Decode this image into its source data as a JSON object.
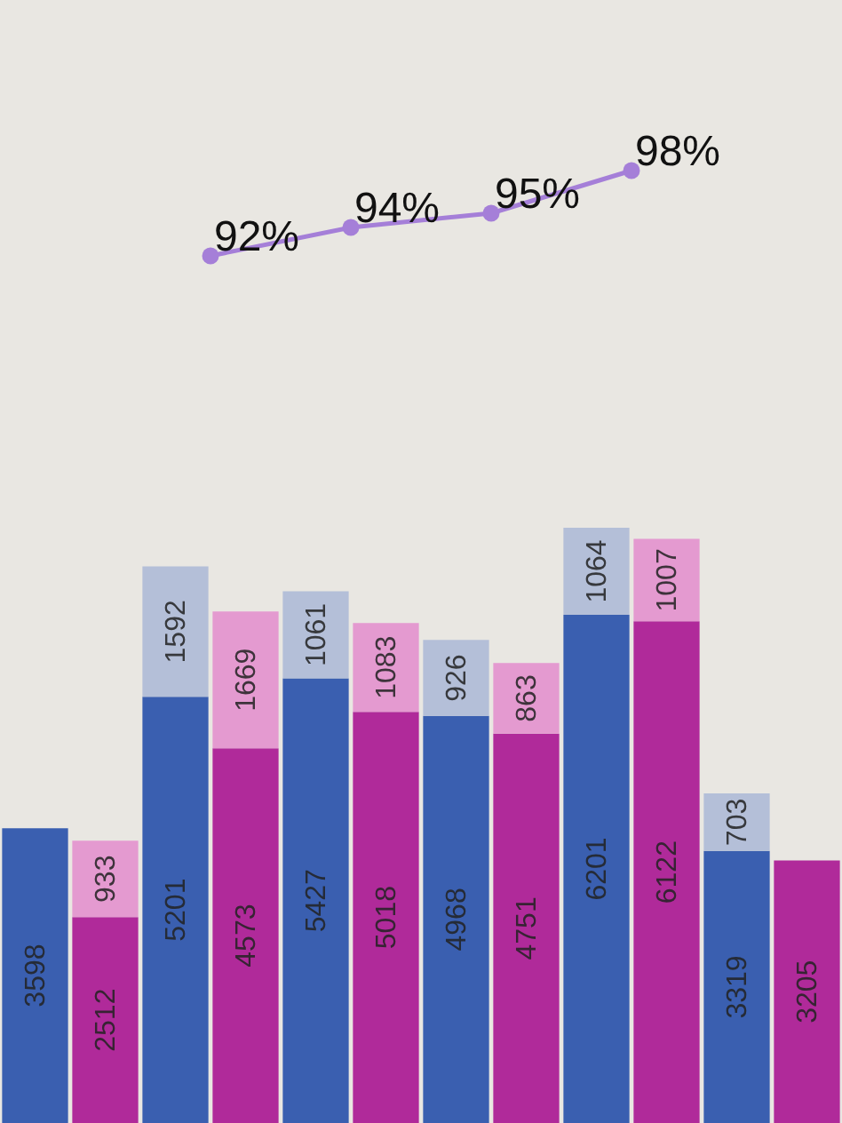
{
  "chart_data": [
    {
      "type": "line",
      "tick_labels": false,
      "marker": "circle",
      "categories": [
        null,
        null,
        null,
        null,
        null,
        null
      ],
      "series": [
        {
          "color": "#a57fd8",
          "values": [
            null,
            92,
            94,
            95,
            98,
            null
          ],
          "value_labels": [
            null,
            "92%",
            "94%",
            "95%",
            "98%",
            null
          ]
        }
      ]
    },
    {
      "type": "bar",
      "stacked": true,
      "data_labels": true,
      "tick_labels": false,
      "ylim": [
        0,
        8500
      ],
      "categories": [
        null,
        null,
        null,
        null,
        null,
        null,
        null,
        null,
        null,
        null,
        null,
        null
      ],
      "series": [
        {
          "colors": [
            "#3a5fb0",
            "#b02a9a",
            "#3a5fb0",
            "#b02a9a",
            "#3a5fb0",
            "#b02a9a",
            "#3a5fb0",
            "#b02a9a",
            "#3a5fb0",
            "#b02a9a",
            "#3a5fb0",
            "#b02a9a"
          ],
          "values": [
            3598,
            2512,
            5201,
            4573,
            5427,
            5018,
            4968,
            4751,
            6201,
            6122,
            3319,
            3205
          ]
        },
        {
          "colors": [
            null,
            "#e49ad0",
            "#b4bfd8",
            "#e49ad0",
            "#b4bfd8",
            "#e49ad0",
            "#b4bfd8",
            "#e49ad0",
            "#b4bfd8",
            "#e49ad0",
            "#b4bfd8",
            null
          ],
          "values": [
            null,
            933,
            1592,
            1669,
            1061,
            1083,
            926,
            863,
            1064,
            1007,
            703,
            null
          ]
        }
      ]
    }
  ]
}
